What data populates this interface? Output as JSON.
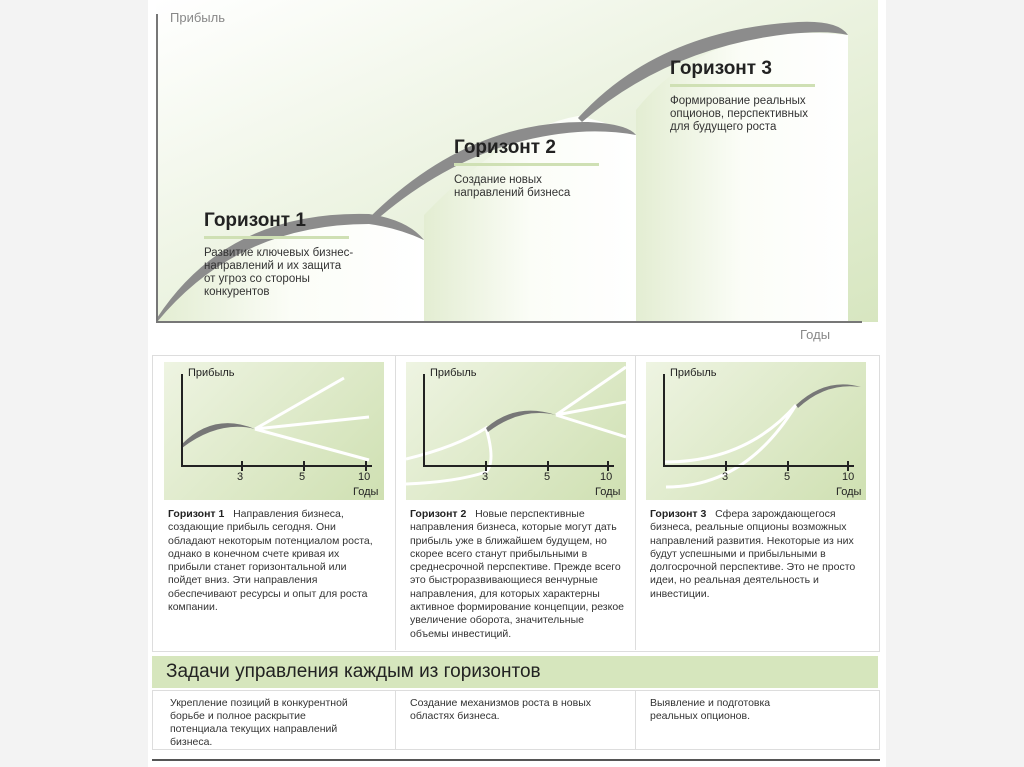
{
  "main_diagram": {
    "y_axis_label": "Прибыль",
    "x_axis_label": "Годы",
    "horizons": [
      {
        "title": "Горизонт 1",
        "description": "Развитие ключевых бизнес-направлений и их защита от угроз со стороны конкурентов"
      },
      {
        "title": "Горизонт 2",
        "description": "Создание новых направлений бизнеса"
      },
      {
        "title": "Горизонт 3",
        "description": "Формирование реальных опционов, перспективных для будущего роста"
      }
    ]
  },
  "mini_charts": [
    {
      "y_label": "Прибыль",
      "x_label": "Годы",
      "ticks": [
        "3",
        "5",
        "10"
      ]
    },
    {
      "y_label": "Прибыль",
      "x_label": "Годы",
      "ticks": [
        "3",
        "5",
        "10"
      ]
    },
    {
      "y_label": "Прибыль",
      "x_label": "Годы",
      "ticks": [
        "3",
        "5",
        "10"
      ]
    }
  ],
  "descriptions": [
    {
      "title": "Горизонт 1",
      "text": "Направления бизнеса, создающие прибыль сегодня. Они обладают некоторым потенциалом роста, однако в конечном счете кривая их прибыли станет горизонтальной или пойдет вниз. Эти направления обеспечивают ресурсы и опыт для роста компании."
    },
    {
      "title": "Горизонт 2",
      "text": "Новые перспективные направления бизнеса, которые могут дать прибыль уже в ближайшем будущем, но скорее всего станут прибыльными в среднесрочной перспективе. Прежде всего это быстроразвивающиеся венчурные направления, для которых характерны активное формирование концепции, резкое увеличение оборота, значительные объемы инвестиций."
    },
    {
      "title": "Горизонт 3",
      "text": "Сфера зарождающегося бизнеса, реальные опционы возможных направлений развития. Некоторые из них будут успешными и прибыльными в долгосрочной перспективе. Это не просто идеи, но реальная деятельность и инвестиции."
    }
  ],
  "tasks": {
    "title": "Задачи управления каждым из горизонтов",
    "items": [
      "Укрепление позиций в конкурентной борьбе и полное раскрытие потенциала текущих направлений бизнеса.",
      "Создание механизмов роста в новых областях бизнеса.",
      "Выявление и подготовка реальных опционов."
    ]
  },
  "colors": {
    "green_light": "#e6efd6",
    "green_bar": "#d3e4b9",
    "curve_gray": "#8c8c8c"
  }
}
